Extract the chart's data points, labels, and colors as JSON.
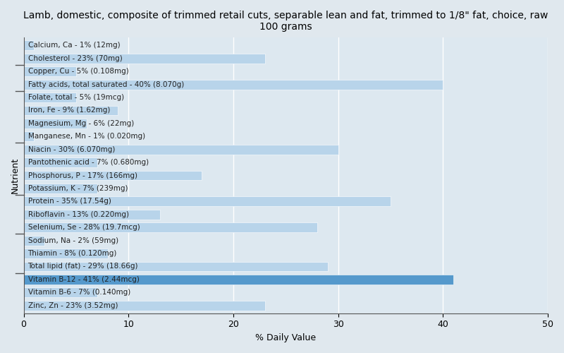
{
  "title": "Lamb, domestic, composite of trimmed retail cuts, separable lean and fat, trimmed to 1/8\" fat, choice, raw\n100 grams",
  "xlabel": "% Daily Value",
  "ylabel": "Nutrient",
  "xlim": [
    0,
    50
  ],
  "background_color": "#dde8f0",
  "plot_bg_color": "#dde8f0",
  "bar_color": "#b8d4ea",
  "bar_color_highlight": "#5599cc",
  "nutrients": [
    {
      "label": "Calcium, Ca - 1% (12mg)",
      "value": 1
    },
    {
      "label": "Cholesterol - 23% (70mg)",
      "value": 23
    },
    {
      "label": "Copper, Cu - 5% (0.108mg)",
      "value": 5
    },
    {
      "label": "Fatty acids, total saturated - 40% (8.070g)",
      "value": 40
    },
    {
      "label": "Folate, total - 5% (19mcg)",
      "value": 5
    },
    {
      "label": "Iron, Fe - 9% (1.62mg)",
      "value": 9
    },
    {
      "label": "Magnesium, Mg - 6% (22mg)",
      "value": 6
    },
    {
      "label": "Manganese, Mn - 1% (0.020mg)",
      "value": 1
    },
    {
      "label": "Niacin - 30% (6.070mg)",
      "value": 30
    },
    {
      "label": "Pantothenic acid - 7% (0.680mg)",
      "value": 7
    },
    {
      "label": "Phosphorus, P - 17% (166mg)",
      "value": 17
    },
    {
      "label": "Potassium, K - 7% (239mg)",
      "value": 7
    },
    {
      "label": "Protein - 35% (17.54g)",
      "value": 35
    },
    {
      "label": "Riboflavin - 13% (0.220mg)",
      "value": 13
    },
    {
      "label": "Selenium, Se - 28% (19.7mcg)",
      "value": 28
    },
    {
      "label": "Sodium, Na - 2% (59mg)",
      "value": 2
    },
    {
      "label": "Thiamin - 8% (0.120mg)",
      "value": 8
    },
    {
      "label": "Total lipid (fat) - 29% (18.66g)",
      "value": 29
    },
    {
      "label": "Vitamin B-12 - 41% (2.44mcg)",
      "value": 41,
      "highlight": true
    },
    {
      "label": "Vitamin B-6 - 7% (0.140mg)",
      "value": 7
    },
    {
      "label": "Zinc, Zn - 23% (3.52mg)",
      "value": 23
    }
  ],
  "separator_positions": [
    1.5,
    3.5,
    7.5,
    11.5,
    14.5,
    17.5
  ],
  "title_fontsize": 10,
  "axis_label_fontsize": 9,
  "tick_fontsize": 9,
  "bar_label_fontsize": 7.5
}
